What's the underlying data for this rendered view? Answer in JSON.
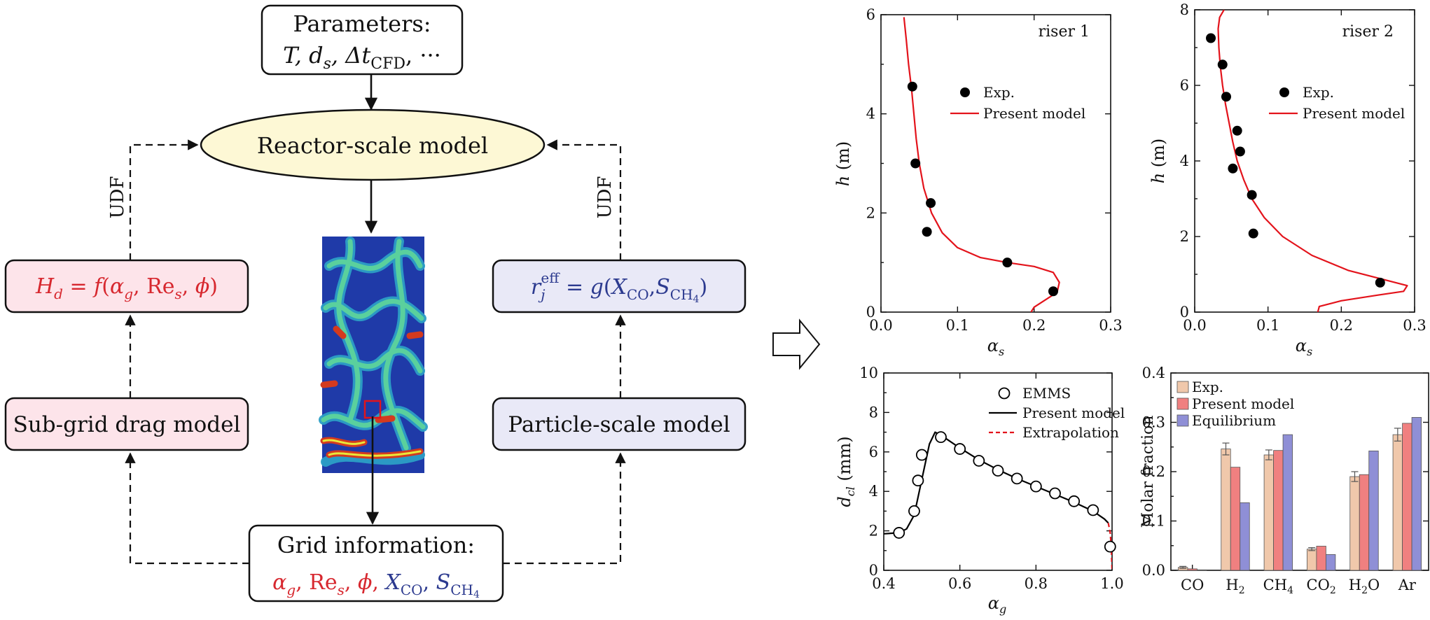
{
  "flowchart": {
    "parameters": {
      "title": "Parameters:",
      "line": "T, d_s, Δt_CFD, ···"
    },
    "reactor": {
      "label": "Reactor-scale model",
      "fill": "#fdf8d5"
    },
    "udf_left": "UDF",
    "udf_right": "UDF",
    "hd_box": {
      "label": "H_d = f(α_g, Re_s, φ)",
      "fill": "#fde4ea",
      "text_color": "#d7282f"
    },
    "rj_box": {
      "label": "r_j^eff = g(X_CO, S_CH4)",
      "fill": "#e9e9f7",
      "text_color": "#2c3a8f"
    },
    "subgrid": {
      "label": "Sub-grid drag model",
      "fill": "#fde4ea"
    },
    "particle": {
      "label": "Particle-scale model",
      "fill": "#e9e9f7"
    },
    "grid_info": {
      "title": "Grid information:",
      "line": "α_g, Re_s, φ, X_CO, S_CH4"
    },
    "simulation_image": "cfd-solid-fraction-contour"
  },
  "transition_arrow": "hollow-right-arrow",
  "chart_data": [
    {
      "type": "scatter+line",
      "panel_label": "riser 1",
      "xlabel": "α_s",
      "ylabel": "h (m)",
      "xlim": [
        0.0,
        0.3
      ],
      "ylim": [
        0,
        6
      ],
      "xticks": [
        "0.0",
        "0.1",
        "0.2",
        "0.3"
      ],
      "yticks": [
        "0",
        "2",
        "4",
        "6"
      ],
      "legend": {
        "position": "top-right",
        "entries": [
          "Exp.",
          "Present model"
        ]
      },
      "series": [
        {
          "name": "Exp.",
          "marker": "filled-circle",
          "color": "#000000",
          "points": [
            [
              0.041,
              4.55
            ],
            [
              0.045,
              3.0
            ],
            [
              0.065,
              2.2
            ],
            [
              0.06,
              1.62
            ],
            [
              0.165,
              1.0
            ],
            [
              0.225,
              0.42
            ]
          ]
        },
        {
          "name": "Present model",
          "style": "line",
          "color": "#e3131b",
          "points": [
            [
              0.03,
              5.95
            ],
            [
              0.033,
              5.5
            ],
            [
              0.036,
              5.0
            ],
            [
              0.04,
              4.5
            ],
            [
              0.043,
              4.0
            ],
            [
              0.046,
              3.5
            ],
            [
              0.05,
              3.0
            ],
            [
              0.056,
              2.5
            ],
            [
              0.066,
              2.0
            ],
            [
              0.08,
              1.6
            ],
            [
              0.1,
              1.3
            ],
            [
              0.13,
              1.1
            ],
            [
              0.165,
              1.0
            ],
            [
              0.2,
              0.92
            ],
            [
              0.225,
              0.8
            ],
            [
              0.233,
              0.6
            ],
            [
              0.23,
              0.4
            ],
            [
              0.215,
              0.25
            ],
            [
              0.2,
              0.1
            ],
            [
              0.196,
              0.0
            ]
          ]
        }
      ]
    },
    {
      "type": "scatter+line",
      "panel_label": "riser 2",
      "xlabel": "α_s",
      "ylabel": "h (m)",
      "xlim": [
        0.0,
        0.3
      ],
      "ylim": [
        0,
        8
      ],
      "xticks": [
        "0.0",
        "0.1",
        "0.2",
        "0.3"
      ],
      "yticks": [
        "0",
        "2",
        "4",
        "6",
        "8"
      ],
      "legend": {
        "position": "top-right",
        "entries": [
          "Exp.",
          "Present model"
        ]
      },
      "series": [
        {
          "name": "Exp.",
          "marker": "filled-circle",
          "color": "#000000",
          "points": [
            [
              0.022,
              7.25
            ],
            [
              0.038,
              6.55
            ],
            [
              0.043,
              5.7
            ],
            [
              0.058,
              4.8
            ],
            [
              0.062,
              4.25
            ],
            [
              0.052,
              3.8
            ],
            [
              0.078,
              3.1
            ],
            [
              0.08,
              2.08
            ],
            [
              0.253,
              0.78
            ]
          ]
        },
        {
          "name": "Present model",
          "style": "line",
          "color": "#e3131b",
          "points": [
            [
              0.04,
              8.0
            ],
            [
              0.034,
              7.8
            ],
            [
              0.032,
              7.5
            ],
            [
              0.033,
              7.0
            ],
            [
              0.035,
              6.5
            ],
            [
              0.038,
              6.0
            ],
            [
              0.042,
              5.5
            ],
            [
              0.047,
              5.0
            ],
            [
              0.052,
              4.5
            ],
            [
              0.058,
              4.0
            ],
            [
              0.067,
              3.5
            ],
            [
              0.078,
              3.0
            ],
            [
              0.095,
              2.5
            ],
            [
              0.12,
              2.0
            ],
            [
              0.16,
              1.5
            ],
            [
              0.21,
              1.1
            ],
            [
              0.26,
              0.85
            ],
            [
              0.29,
              0.7
            ],
            [
              0.285,
              0.55
            ],
            [
              0.25,
              0.45
            ],
            [
              0.2,
              0.3
            ],
            [
              0.17,
              0.15
            ],
            [
              0.168,
              0.0
            ]
          ]
        }
      ]
    },
    {
      "type": "scatter+line",
      "xlabel": "α_g",
      "ylabel": "d_cl (mm)",
      "xlim": [
        0.4,
        1.0
      ],
      "ylim": [
        0,
        10
      ],
      "xticks": [
        "0.4",
        "0.6",
        "0.8",
        "1.0"
      ],
      "yticks": [
        "0",
        "2",
        "4",
        "6",
        "8",
        "10"
      ],
      "legend": {
        "position": "top-right",
        "entries": [
          "EMMS",
          "Present model",
          "Extrapolation"
        ]
      },
      "series": [
        {
          "name": "EMMS",
          "marker": "open-circle",
          "color": "#000000",
          "points": [
            [
              0.44,
              1.9
            ],
            [
              0.48,
              3.0
            ],
            [
              0.49,
              4.55
            ],
            [
              0.5,
              5.85
            ],
            [
              0.55,
              6.75
            ],
            [
              0.6,
              6.15
            ],
            [
              0.65,
              5.55
            ],
            [
              0.7,
              5.05
            ],
            [
              0.75,
              4.65
            ],
            [
              0.8,
              4.25
            ],
            [
              0.85,
              3.9
            ],
            [
              0.9,
              3.5
            ],
            [
              0.95,
              3.05
            ],
            [
              0.995,
              1.2
            ]
          ]
        },
        {
          "name": "Present model",
          "style": "line",
          "color": "#000000",
          "points": [
            [
              0.4,
              1.85
            ],
            [
              0.44,
              1.9
            ],
            [
              0.46,
              2.1
            ],
            [
              0.48,
              2.8
            ],
            [
              0.5,
              4.6
            ],
            [
              0.52,
              6.4
            ],
            [
              0.535,
              7.0
            ],
            [
              0.55,
              6.85
            ],
            [
              0.6,
              6.2
            ],
            [
              0.65,
              5.6
            ],
            [
              0.7,
              5.1
            ],
            [
              0.75,
              4.65
            ],
            [
              0.8,
              4.25
            ],
            [
              0.85,
              3.85
            ],
            [
              0.9,
              3.45
            ],
            [
              0.95,
              3.0
            ],
            [
              0.98,
              2.6
            ],
            [
              0.99,
              2.4
            ]
          ]
        },
        {
          "name": "Extrapolation",
          "style": "dashed",
          "color": "#e3131b",
          "points": [
            [
              0.99,
              2.4
            ],
            [
              0.995,
              1.9
            ],
            [
              0.998,
              1.2
            ],
            [
              1.0,
              0.0
            ]
          ]
        }
      ]
    },
    {
      "type": "bar",
      "xlabel": "",
      "ylabel": "Molar fraction",
      "ylim": [
        0.0,
        0.4
      ],
      "yticks": [
        "0.0",
        "0.1",
        "0.2",
        "0.3",
        "0.4"
      ],
      "categories": [
        "CO",
        "H2",
        "CH4",
        "CO2",
        "H2O",
        "Ar"
      ],
      "legend": {
        "position": "top-left",
        "entries": [
          "Exp.",
          "Present model",
          "Equilibrium"
        ]
      },
      "series": [
        {
          "name": "Exp.",
          "color": "#f0c8ab",
          "values": [
            0.006,
            0.246,
            0.234,
            0.043,
            0.19,
            0.275
          ],
          "errors": [
            0.002,
            0.012,
            0.01,
            0.003,
            0.01,
            0.013
          ]
        },
        {
          "name": "Present model",
          "color": "#f08080",
          "values": [
            0.003,
            0.209,
            0.243,
            0.049,
            0.194,
            0.298
          ]
        },
        {
          "name": "Equilibrium",
          "color": "#8f8fd6",
          "values": [
            0.001,
            0.137,
            0.275,
            0.032,
            0.242,
            0.31
          ]
        }
      ]
    }
  ]
}
